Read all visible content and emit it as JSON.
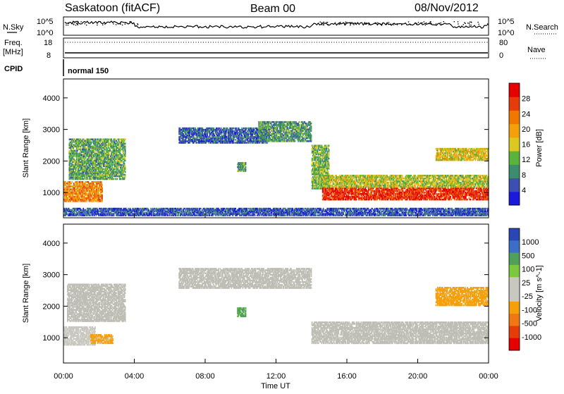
{
  "header": {
    "station": "Saskatoon (fitACF)",
    "beam": "Beam 00",
    "date": "08/Nov/2012"
  },
  "noise_panel": {
    "left_label": "N.Sky",
    "right_label": "N.Search",
    "left_ticks": [
      "10^5",
      "10^0"
    ],
    "right_ticks": [
      "10^5",
      "10^0"
    ]
  },
  "freq_panel": {
    "left_label_1": "Freq.",
    "left_label_2": "[MHz]",
    "right_label": "Nave",
    "left_ticks": [
      "18",
      "8"
    ],
    "right_ticks": [
      "80",
      "0"
    ]
  },
  "cpid": {
    "label": "CPID",
    "value": "normal 150"
  },
  "x_axis": {
    "label": "Time UT",
    "ticks": [
      "00:00",
      "04:00",
      "08:00",
      "12:00",
      "16:00",
      "20:00",
      "00:00"
    ]
  },
  "colors": {
    "power_scale": [
      "#1a1adc",
      "#3c50b4",
      "#3c8c6e",
      "#5ab43c",
      "#dcc81e",
      "#f5a00a",
      "#f07800",
      "#e63c0a",
      "#e60000"
    ],
    "velocity_scale": [
      "#2846b4",
      "#3c6ec8",
      "#50a05a",
      "#7cc83c",
      "#c8c8c0",
      "#c8c8c0",
      "#f5a00a",
      "#f07814",
      "#e63c0a",
      "#e60000"
    ],
    "ground_scatter": "#bebeb4"
  },
  "chart_data": [
    {
      "type": "heatmap",
      "name": "Power",
      "ylabel": "Slant Range [km]",
      "yticks": [
        "1000",
        "2000",
        "3000",
        "4000"
      ],
      "ylim": [
        200,
        4600
      ],
      "xlim_hours": [
        0,
        24
      ],
      "colorbar_label": "Power [dB]",
      "colorbar_ticks": [
        "4",
        "8",
        "12",
        "16",
        "20",
        "24",
        "28"
      ],
      "colorbar_range": [
        0,
        32
      ],
      "regions": [
        {
          "t0": 0.0,
          "t1": 2.2,
          "r0": 700,
          "r1": 1350,
          "level": 22
        },
        {
          "t0": 0.3,
          "t1": 3.5,
          "r0": 1400,
          "r1": 2700,
          "level": 11
        },
        {
          "t0": 6.5,
          "t1": 11.5,
          "r0": 2550,
          "r1": 3050,
          "level": 6
        },
        {
          "t0": 11.0,
          "t1": 14.0,
          "r0": 2600,
          "r1": 3250,
          "level": 10
        },
        {
          "t0": 14.0,
          "t1": 15.0,
          "r0": 1100,
          "r1": 2500,
          "level": 12
        },
        {
          "t0": 14.6,
          "t1": 24.0,
          "r0": 750,
          "r1": 1150,
          "level": 28
        },
        {
          "t0": 14.6,
          "t1": 24.0,
          "r0": 1150,
          "r1": 1550,
          "level": 15
        },
        {
          "t0": 21.0,
          "t1": 24.0,
          "r0": 2000,
          "r1": 2400,
          "level": 17
        },
        {
          "t0": 9.8,
          "t1": 10.3,
          "r0": 1650,
          "r1": 1950,
          "level": 10
        },
        {
          "t0": 0.0,
          "t1": 24.0,
          "r0": 250,
          "r1": 500,
          "level": 5
        }
      ]
    },
    {
      "type": "heatmap",
      "name": "Velocity",
      "ylabel": "Slant Range [km]",
      "yticks": [
        "1000",
        "2000",
        "3000",
        "4000"
      ],
      "ylim": [
        200,
        4600
      ],
      "xlim_hours": [
        0,
        24
      ],
      "colorbar_label": "Velocity [m s^-1]",
      "colorbar_ticks": [
        "1000",
        "500",
        "100",
        "25",
        "-25",
        "-100",
        "-500",
        "-1000"
      ],
      "regions": [
        {
          "t0": 0.0,
          "t1": 1.8,
          "r0": 750,
          "r1": 1350,
          "level": -90
        },
        {
          "t0": 1.5,
          "t1": 2.8,
          "r0": 800,
          "r1": 1100,
          "level": -300
        },
        {
          "t0": 0.2,
          "t1": 3.5,
          "r0": 1500,
          "r1": 2700,
          "level": 0
        },
        {
          "t0": 6.5,
          "t1": 14.0,
          "r0": 2550,
          "r1": 3200,
          "level": 0
        },
        {
          "t0": 14.0,
          "t1": 24.0,
          "r0": 800,
          "r1": 1500,
          "level": 0
        },
        {
          "t0": 21.0,
          "t1": 24.0,
          "r0": 2000,
          "r1": 2600,
          "level": -400
        },
        {
          "t0": 9.8,
          "t1": 10.3,
          "r0": 1650,
          "r1": 1950,
          "level": 100
        }
      ]
    }
  ]
}
